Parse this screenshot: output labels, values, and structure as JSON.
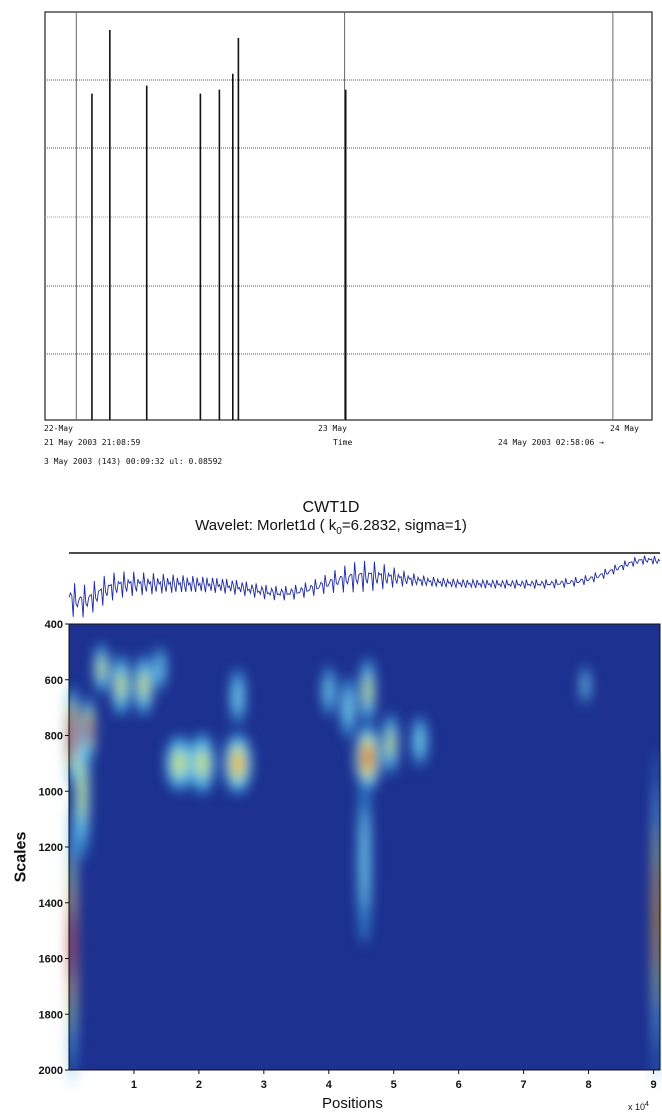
{
  "chart_data": [
    {
      "type": "bar",
      "title": "",
      "x_tick_labels": [
        "22-May",
        "23 May",
        "24 May"
      ],
      "xlabel": "Time",
      "range_start_label": "21 May 2003 21:08:59",
      "range_end_label": "24 May 2003 02:58:06 →",
      "cursor_readout": "3 May 2003 (143) 00:09:32 ul: 0.08592",
      "x_units": "hours since 22-May 00:00",
      "xlim": [
        -2.8,
        51.5
      ],
      "ylim": [
        0,
        1
      ],
      "grid": true,
      "events": [
        {
          "t": 1.4,
          "value": 0.82
        },
        {
          "t": 3.0,
          "value": 0.98
        },
        {
          "t": 6.3,
          "value": 0.84
        },
        {
          "t": 11.1,
          "value": 0.82
        },
        {
          "t": 12.8,
          "value": 0.83
        },
        {
          "t": 14.0,
          "value": 0.87
        },
        {
          "t": 14.5,
          "value": 0.96
        },
        {
          "t": 24.1,
          "value": 0.83
        }
      ]
    },
    {
      "type": "heatmap",
      "title": "CWT1D",
      "subtitle_prefix": "Wavelet: Morlet1d ( k",
      "subtitle_sub": "0",
      "subtitle_suffix": "=6.2832, sigma=1)",
      "xlabel": "Positions",
      "ylabel": "Scales",
      "x_multiplier": "x 10",
      "x_multiplier_exp": "4",
      "xlim": [
        0,
        9.1
      ],
      "ylim": [
        400,
        2000
      ],
      "x_ticks": [
        "1",
        "2",
        "3",
        "4",
        "5",
        "6",
        "7",
        "8",
        "9"
      ],
      "y_ticks": [
        "400",
        "600",
        "800",
        "1000",
        "1200",
        "1400",
        "1600",
        "1800",
        "2000"
      ],
      "colormap": [
        "#1a2f8a",
        "#2a4ab5",
        "#3aa0e0",
        "#7fd8f0",
        "#d8e84a",
        "#f5a21b",
        "#c81e12"
      ],
      "background_color": "#1d3190",
      "hotspots": [
        {
          "x": 0.05,
          "y": 800,
          "sx": 0.1,
          "sy": 180,
          "v": 1.0
        },
        {
          "x": 0.3,
          "y": 780,
          "sx": 0.1,
          "sy": 120,
          "v": 0.85
        },
        {
          "x": 0.2,
          "y": 1000,
          "sx": 0.12,
          "sy": 250,
          "v": 0.45
        },
        {
          "x": 0.5,
          "y": 560,
          "sx": 0.12,
          "sy": 90,
          "v": 0.45
        },
        {
          "x": 0.8,
          "y": 620,
          "sx": 0.15,
          "sy": 110,
          "v": 0.5
        },
        {
          "x": 1.15,
          "y": 620,
          "sx": 0.15,
          "sy": 110,
          "v": 0.5
        },
        {
          "x": 1.4,
          "y": 560,
          "sx": 0.1,
          "sy": 80,
          "v": 0.35
        },
        {
          "x": 1.7,
          "y": 900,
          "sx": 0.22,
          "sy": 100,
          "v": 0.55
        },
        {
          "x": 2.05,
          "y": 900,
          "sx": 0.2,
          "sy": 110,
          "v": 0.5
        },
        {
          "x": 2.6,
          "y": 900,
          "sx": 0.22,
          "sy": 110,
          "v": 0.6
        },
        {
          "x": 2.6,
          "y": 660,
          "sx": 0.12,
          "sy": 100,
          "v": 0.35
        },
        {
          "x": 4.0,
          "y": 640,
          "sx": 0.1,
          "sy": 90,
          "v": 0.4
        },
        {
          "x": 4.3,
          "y": 700,
          "sx": 0.12,
          "sy": 110,
          "v": 0.4
        },
        {
          "x": 4.6,
          "y": 880,
          "sx": 0.2,
          "sy": 120,
          "v": 0.85
        },
        {
          "x": 4.6,
          "y": 640,
          "sx": 0.12,
          "sy": 120,
          "v": 0.5
        },
        {
          "x": 4.55,
          "y": 1250,
          "sx": 0.1,
          "sy": 300,
          "v": 0.4
        },
        {
          "x": 4.95,
          "y": 830,
          "sx": 0.12,
          "sy": 110,
          "v": 0.45
        },
        {
          "x": 5.4,
          "y": 820,
          "sx": 0.12,
          "sy": 90,
          "v": 0.3
        },
        {
          "x": 7.95,
          "y": 620,
          "sx": 0.07,
          "sy": 70,
          "v": 0.3
        },
        {
          "x": 0.05,
          "y": 1550,
          "sx": 0.06,
          "sy": 500,
          "v": 0.75
        },
        {
          "x": 9.05,
          "y": 1450,
          "sx": 0.05,
          "sy": 600,
          "v": 0.7
        }
      ],
      "signal_description": "waveform trace above scalogram",
      "signal_color": "#1f2aa0"
    }
  ]
}
